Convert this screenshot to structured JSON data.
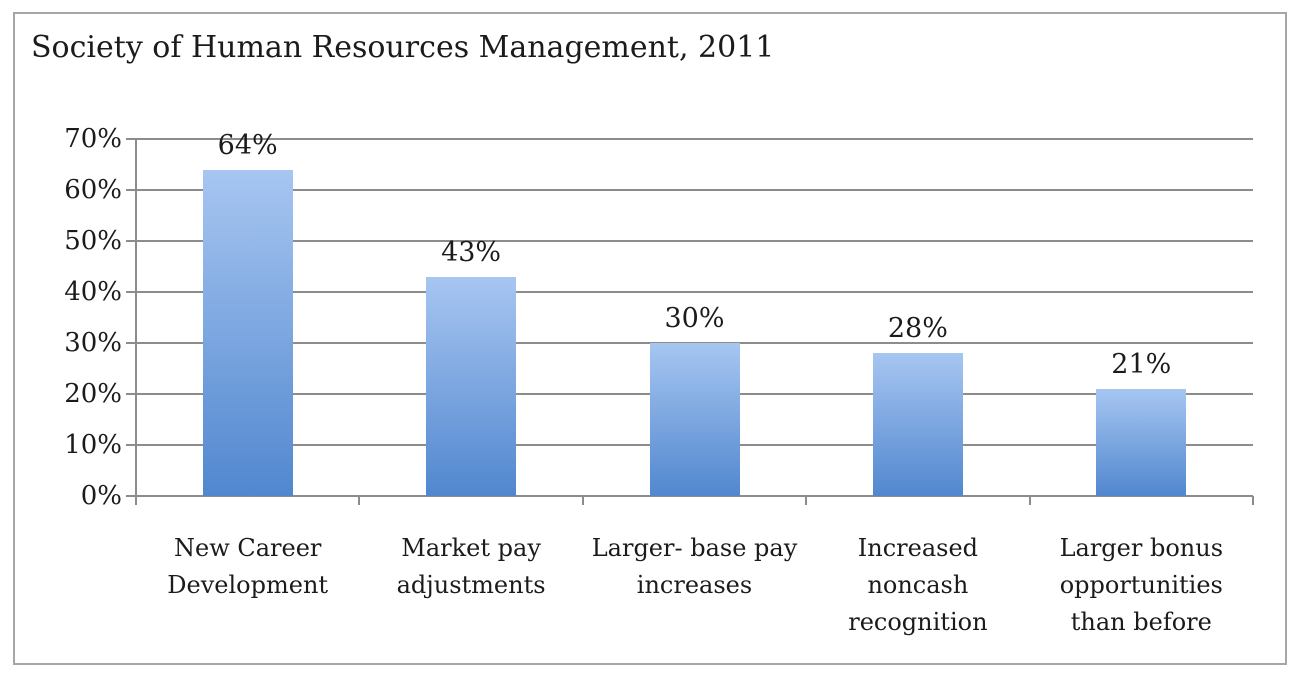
{
  "chart_data": {
    "type": "bar",
    "title": "Society of Human Resources Management, 2011",
    "categories": [
      "New Career Development",
      "Market pay adjustments",
      "Larger- base pay increases",
      "Increased noncash recognition",
      "Larger bonus opportunities than before"
    ],
    "category_lines": [
      [
        "New Career",
        "Development"
      ],
      [
        "Market pay",
        "adjustments"
      ],
      [
        "Larger- base pay",
        "increases"
      ],
      [
        "Increased",
        "noncash",
        "recognition"
      ],
      [
        "Larger bonus",
        "opportunities",
        "than before"
      ]
    ],
    "values": [
      64,
      43,
      30,
      28,
      21
    ],
    "data_labels": [
      "64%",
      "43%",
      "30%",
      "28%",
      "21%"
    ],
    "y_tick_labels": [
      "0%",
      "10%",
      "20%",
      "30%",
      "40%",
      "50%",
      "60%",
      "70%"
    ],
    "ylim": [
      0,
      70
    ],
    "ytick_step": 10,
    "grid": true,
    "legend": false,
    "colors": {
      "bar_gradient_top": "#a7c6f1",
      "bar_gradient_bottom": "#5187cf",
      "grid_line": "#8c8c8c",
      "axis_line": "#8c8c8c",
      "text": "#1b1b1b",
      "frame_border": "#a6a6a6",
      "background": "#ffffff"
    }
  }
}
